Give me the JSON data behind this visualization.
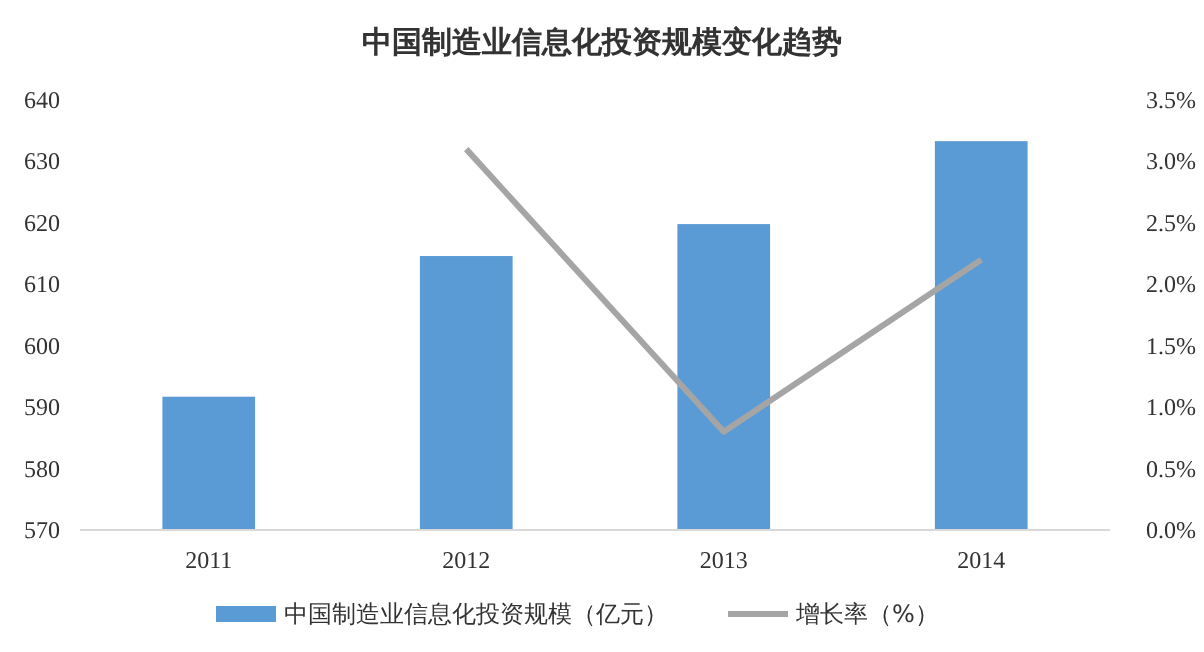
{
  "chart_data": {
    "type": "bar",
    "title": "中国制造业信息化投资规模变化趋势",
    "categories": [
      "2011",
      "2012",
      "2013",
      "2014"
    ],
    "series": [
      {
        "name": "中国制造业信息化投资规模（亿元）",
        "color": "#5b9bd5",
        "values": [
          591.7,
          614.6,
          619.8,
          633.3
        ]
      },
      {
        "name": "增长率（%）",
        "type": "line",
        "axis": "y2",
        "color": "#a5a5a5",
        "values": [
          null,
          3.1,
          0.8,
          2.2
        ]
      }
    ],
    "ylim": [
      570,
      640
    ],
    "yticks": [
      570,
      580,
      590,
      600,
      610,
      620,
      630,
      640
    ],
    "y2lim": [
      0,
      3.5
    ],
    "y2ticks": [
      {
        "value": 0,
        "label": "0.0%"
      },
      {
        "value": 0.5,
        "label": "0.5%"
      },
      {
        "value": 1,
        "label": "1.0%"
      },
      {
        "value": 1.5,
        "label": "1.5%"
      },
      {
        "value": 2,
        "label": "2.0%"
      },
      {
        "value": 2.5,
        "label": "2.5%"
      },
      {
        "value": 3,
        "label": "3.0%"
      },
      {
        "value": 3.5,
        "label": "3.5%"
      }
    ],
    "grid": false,
    "legend": "bottom"
  }
}
